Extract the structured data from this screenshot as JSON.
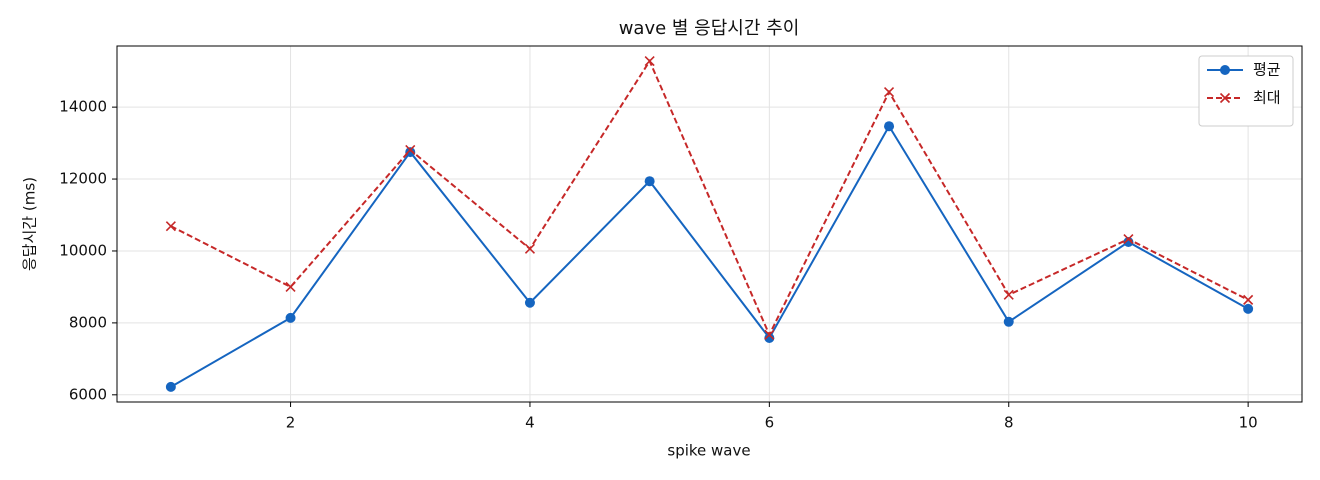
{
  "chart_data": {
    "type": "line",
    "title": "wave 별 응답시간 추이",
    "xlabel": "spike wave",
    "ylabel": "응답시간 (ms)",
    "x": [
      1,
      2,
      3,
      4,
      5,
      6,
      7,
      8,
      9,
      10
    ],
    "series": [
      {
        "name": "평균",
        "color": "#1565c0",
        "marker": "o",
        "linestyle": "solid",
        "values": [
          6220,
          8140,
          12750,
          8560,
          11940,
          7580,
          13470,
          8030,
          10250,
          8390
        ]
      },
      {
        "name": "최대",
        "color": "#c62828",
        "marker": "x",
        "linestyle": "dashed",
        "values": [
          10690,
          9000,
          12810,
          10060,
          15280,
          7670,
          14420,
          8780,
          10330,
          8640
        ]
      }
    ],
    "xlim": [
      0.55,
      10.45
    ],
    "xticks": [
      2,
      4,
      6,
      8,
      10
    ],
    "ylim": [
      5800,
      15700
    ],
    "yticks": [
      6000,
      8000,
      10000,
      12000,
      14000
    ],
    "grid": true,
    "legend": "upper right"
  }
}
